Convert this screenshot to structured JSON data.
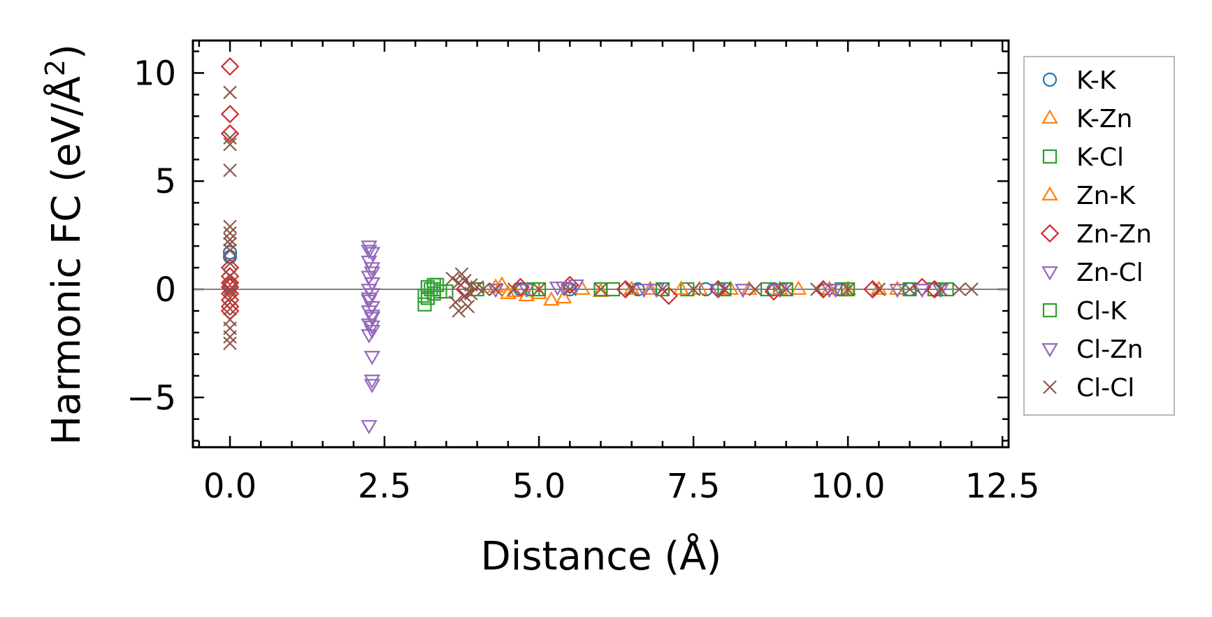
{
  "chart_data": {
    "type": "scatter",
    "title": "",
    "xlabel": "Distance (Å)",
    "ylabel": "Harmonic FC (eV/Å",
    "ylabel_sup": "2",
    "ylabel_close": ")",
    "xlim": [
      -0.6,
      12.6
    ],
    "ylim": [
      -7.3,
      11.5
    ],
    "xticks": [
      0.0,
      2.5,
      5.0,
      7.5,
      10.0,
      12.5
    ],
    "xtick_labels": [
      "0.0",
      "2.5",
      "5.0",
      "7.5",
      "10.0",
      "12.5"
    ],
    "yticks": [
      -5,
      0,
      5,
      10
    ],
    "ytick_labels": [
      "−5",
      "0",
      "5",
      "10"
    ],
    "hline": 0,
    "legend_position": "right, outside plot",
    "series": [
      {
        "name": "K-K",
        "marker": "circle",
        "color": "#1f77b4",
        "x": [
          0.0,
          0.0,
          0.0,
          4.7,
          5.5,
          6.6,
          7.7,
          8.8,
          9.9,
          11.0
        ],
        "y": [
          1.7,
          1.5,
          0.2,
          0.0,
          0.0,
          0.0,
          0.0,
          0.0,
          0.0,
          0.0
        ]
      },
      {
        "name": "K-Zn",
        "marker": "triangle-up",
        "color": "#ff7f0e",
        "x": [
          4.3,
          4.5,
          4.8,
          5.2,
          5.4,
          6.0,
          6.8,
          7.6,
          8.4,
          9.2,
          10.0,
          10.8
        ],
        "y": [
          0.1,
          -0.2,
          -0.3,
          -0.5,
          -0.4,
          -0.1,
          0.0,
          0.0,
          0.0,
          0.0,
          0.0,
          0.0
        ]
      },
      {
        "name": "K-Cl",
        "marker": "square",
        "color": "#2ca02c",
        "x": [
          3.15,
          3.15,
          3.2,
          3.25,
          3.3,
          3.3,
          3.5,
          4.9,
          6.2,
          7.4,
          8.7,
          9.9,
          11.4
        ],
        "y": [
          -0.7,
          -0.3,
          0.1,
          0.0,
          -0.2,
          0.2,
          -0.1,
          0.0,
          0.0,
          0.0,
          0.0,
          0.0,
          0.0
        ]
      },
      {
        "name": "Zn-K",
        "marker": "triangle-up",
        "color": "#ff7f0e",
        "x": [
          4.4,
          4.6,
          5.0,
          5.7,
          6.5,
          7.3,
          8.1,
          8.9,
          9.7,
          10.5
        ],
        "y": [
          0.2,
          -0.1,
          -0.2,
          0.0,
          0.0,
          0.0,
          0.0,
          0.0,
          0.0,
          0.0
        ]
      },
      {
        "name": "Zn-Zn",
        "marker": "diamond",
        "color": "#d62728",
        "x": [
          0.0,
          0.0,
          0.0,
          0.0,
          0.0,
          0.0,
          0.0,
          0.0,
          0.0,
          0.0,
          0.0,
          3.8,
          4.7,
          5.5,
          6.4,
          7.1,
          7.9,
          8.8,
          9.6,
          10.4,
          11.2,
          11.4
        ],
        "y": [
          10.3,
          8.1,
          7.2,
          1.0,
          0.6,
          0.3,
          0.1,
          -0.2,
          -0.5,
          -0.8,
          -1.0,
          0.0,
          0.1,
          0.2,
          0.0,
          -0.3,
          0.0,
          -0.1,
          0.0,
          0.0,
          0.1,
          0.0
        ]
      },
      {
        "name": "Zn-Cl",
        "marker": "triangle-down",
        "color": "#9467bd",
        "x": [
          2.25,
          2.3,
          2.25,
          2.3,
          2.25,
          2.3,
          2.25,
          2.3,
          2.25,
          2.3,
          2.25,
          2.3,
          2.25,
          2.3,
          2.25,
          2.3,
          2.3,
          2.3,
          2.25,
          4.8,
          5.3,
          5.6,
          6.7,
          7.9,
          8.9,
          9.8,
          10.8,
          11.5
        ],
        "y": [
          2.0,
          1.7,
          1.3,
          1.0,
          0.6,
          0.3,
          0.0,
          -0.2,
          -0.5,
          -0.8,
          -1.0,
          -1.3,
          -1.6,
          -1.9,
          -2.1,
          -3.1,
          -4.2,
          -4.4,
          -6.3,
          0.0,
          0.1,
          0.2,
          0.0,
          0.0,
          0.0,
          0.0,
          0.0,
          0.0
        ]
      },
      {
        "name": "Cl-K",
        "marker": "square",
        "color": "#2ca02c",
        "x": [
          3.2,
          3.3,
          3.35,
          3.4,
          4.0,
          5.0,
          6.0,
          7.0,
          8.0,
          9.0,
          10.0,
          11.0,
          11.6
        ],
        "y": [
          -0.4,
          0.0,
          0.2,
          -0.1,
          0.0,
          0.0,
          0.0,
          0.0,
          0.0,
          0.0,
          0.0,
          0.0,
          0.0
        ]
      },
      {
        "name": "Cl-Zn",
        "marker": "triangle-down",
        "color": "#9467bd",
        "x": [
          2.25,
          2.3,
          2.25,
          2.3,
          2.3,
          4.3,
          5.4,
          6.9,
          8.3,
          9.7,
          11.2
        ],
        "y": [
          1.8,
          0.8,
          -0.4,
          -1.2,
          -1.7,
          0.0,
          0.1,
          0.0,
          0.0,
          0.0,
          0.0
        ]
      },
      {
        "name": "Cl-Cl",
        "marker": "x",
        "color": "#8c564b",
        "x": [
          0.0,
          0.0,
          0.0,
          0.0,
          0.0,
          0.0,
          0.0,
          0.0,
          0.0,
          0.0,
          0.0,
          0.0,
          0.0,
          0.0,
          0.0,
          0.0,
          0.0,
          0.0,
          3.6,
          3.65,
          3.7,
          3.7,
          3.75,
          3.8,
          3.8,
          3.85,
          3.9,
          3.9,
          4.0,
          4.1,
          4.3,
          4.6,
          5.0,
          5.5,
          6.0,
          6.5,
          7.0,
          7.5,
          8.0,
          8.5,
          9.0,
          9.5,
          10.0,
          10.5,
          11.0,
          11.5,
          11.8,
          12.0
        ],
        "y": [
          9.1,
          7.0,
          6.7,
          5.5,
          2.9,
          2.6,
          2.3,
          2.1,
          1.8,
          1.2,
          0.6,
          0.0,
          -0.4,
          -0.9,
          -1.4,
          -1.8,
          -2.2,
          -2.5,
          0.5,
          -0.6,
          0.3,
          -1.0,
          0.7,
          -0.3,
          0.4,
          -0.8,
          0.2,
          -0.2,
          0.1,
          0.0,
          0.0,
          0.0,
          0.0,
          0.0,
          0.0,
          0.0,
          0.0,
          0.0,
          0.0,
          0.0,
          0.0,
          0.0,
          0.0,
          0.0,
          0.0,
          0.0,
          0.0,
          0.0
        ]
      }
    ]
  }
}
